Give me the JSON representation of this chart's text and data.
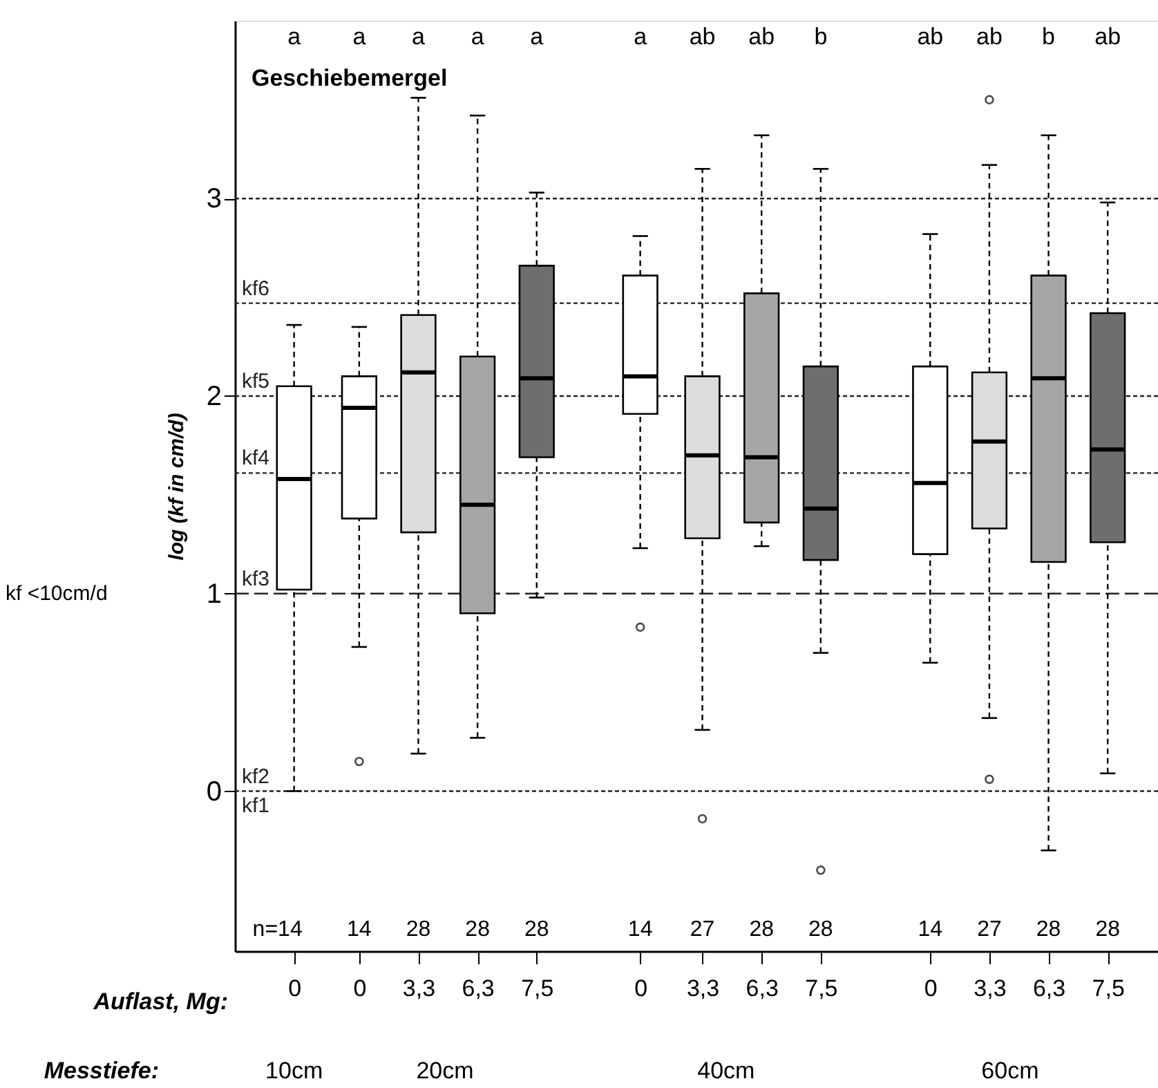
{
  "chart_data": {
    "type": "box",
    "title": "Geschiebemergel",
    "ylabel": "log (kf in cm/d)",
    "categories": [
      "0",
      "0",
      "3,3",
      "6,3",
      "7,5",
      "0",
      "3,3",
      "6,3",
      "7,5",
      "0",
      "3,3",
      "6,3",
      "7,5"
    ],
    "colors": [
      "#ffffff",
      "#ffffff",
      "#dcdcdc",
      "#a6a6a6",
      "#6e6e6e",
      "#ffffff",
      "#dcdcdc",
      "#a6a6a6",
      "#6e6e6e",
      "#ffffff",
      "#dcdcdc",
      "#a6a6a6",
      "#6e6e6e"
    ],
    "boxes": [
      {
        "low": 0.0,
        "q1": 1.02,
        "median": 1.58,
        "q3": 2.05,
        "high": 2.36
      },
      {
        "low": 0.73,
        "q1": 1.38,
        "median": 1.94,
        "q3": 2.1,
        "high": 2.35,
        "outliers": [
          0.15
        ]
      },
      {
        "low": 0.19,
        "q1": 1.31,
        "median": 2.12,
        "q3": 2.41,
        "high": 3.51
      },
      {
        "low": 0.27,
        "q1": 0.9,
        "median": 1.45,
        "q3": 2.2,
        "high": 3.42
      },
      {
        "low": 0.98,
        "q1": 1.69,
        "median": 2.09,
        "q3": 2.66,
        "high": 3.03
      },
      {
        "low": 1.23,
        "q1": 1.91,
        "median": 2.1,
        "q3": 2.61,
        "high": 2.81,
        "outliers": [
          0.83
        ]
      },
      {
        "low": 0.31,
        "q1": 1.28,
        "median": 1.7,
        "q3": 2.1,
        "high": 3.15,
        "outliers": [
          -0.14
        ]
      },
      {
        "low": 1.24,
        "q1": 1.36,
        "median": 1.69,
        "q3": 2.52,
        "high": 3.32
      },
      {
        "low": 0.7,
        "q1": 1.17,
        "median": 1.43,
        "q3": 2.15,
        "high": 3.15,
        "outliers": [
          -0.4
        ]
      },
      {
        "low": 0.65,
        "q1": 1.2,
        "median": 1.56,
        "q3": 2.15,
        "high": 2.82
      },
      {
        "low": 0.37,
        "q1": 1.33,
        "median": 1.77,
        "q3": 2.12,
        "high": 3.17,
        "outliers": [
          3.5,
          0.06
        ]
      },
      {
        "low": -0.3,
        "q1": 1.16,
        "median": 2.09,
        "q3": 2.61,
        "high": 3.32
      },
      {
        "low": 0.09,
        "q1": 1.26,
        "median": 1.73,
        "q3": 2.42,
        "high": 2.98
      }
    ],
    "ylim": [
      -0.81,
      3.9
    ],
    "yticks": [
      0,
      1,
      2,
      3
    ],
    "grid": false,
    "ref_lines": [
      {
        "axis": "y",
        "value": 3,
        "label": null,
        "line_style": "dotted"
      },
      {
        "axis": "y",
        "value": 2.47,
        "label": "kf6",
        "line_style": "dotted"
      },
      {
        "axis": "y",
        "value": 2,
        "label": "kf5",
        "line_style": "dotted"
      },
      {
        "axis": "y",
        "value": 1.61,
        "label": "kf4",
        "line_style": "dotted"
      },
      {
        "axis": "y",
        "value": 1,
        "label": "kf3",
        "line_style": "dashed"
      },
      {
        "axis": "y",
        "value": 0,
        "label": "kf2",
        "line_style": "dotted"
      }
    ],
    "annotations": [
      "a",
      "a",
      "a",
      "a",
      "a",
      "a",
      "ab",
      "ab",
      "b",
      "ab",
      "ab",
      "b",
      "ab",
      "n=14",
      "14",
      "28",
      "28",
      "28",
      "14",
      "27",
      "28",
      "28",
      "14",
      "27",
      "28",
      "28",
      "Auflast, Mg:",
      "Messtiefe:",
      "10cm",
      "20cm",
      "40cm",
      "60cm",
      "kf <10cm/d",
      {
        "text": "kf1",
        "y": 0
      }
    ]
  }
}
